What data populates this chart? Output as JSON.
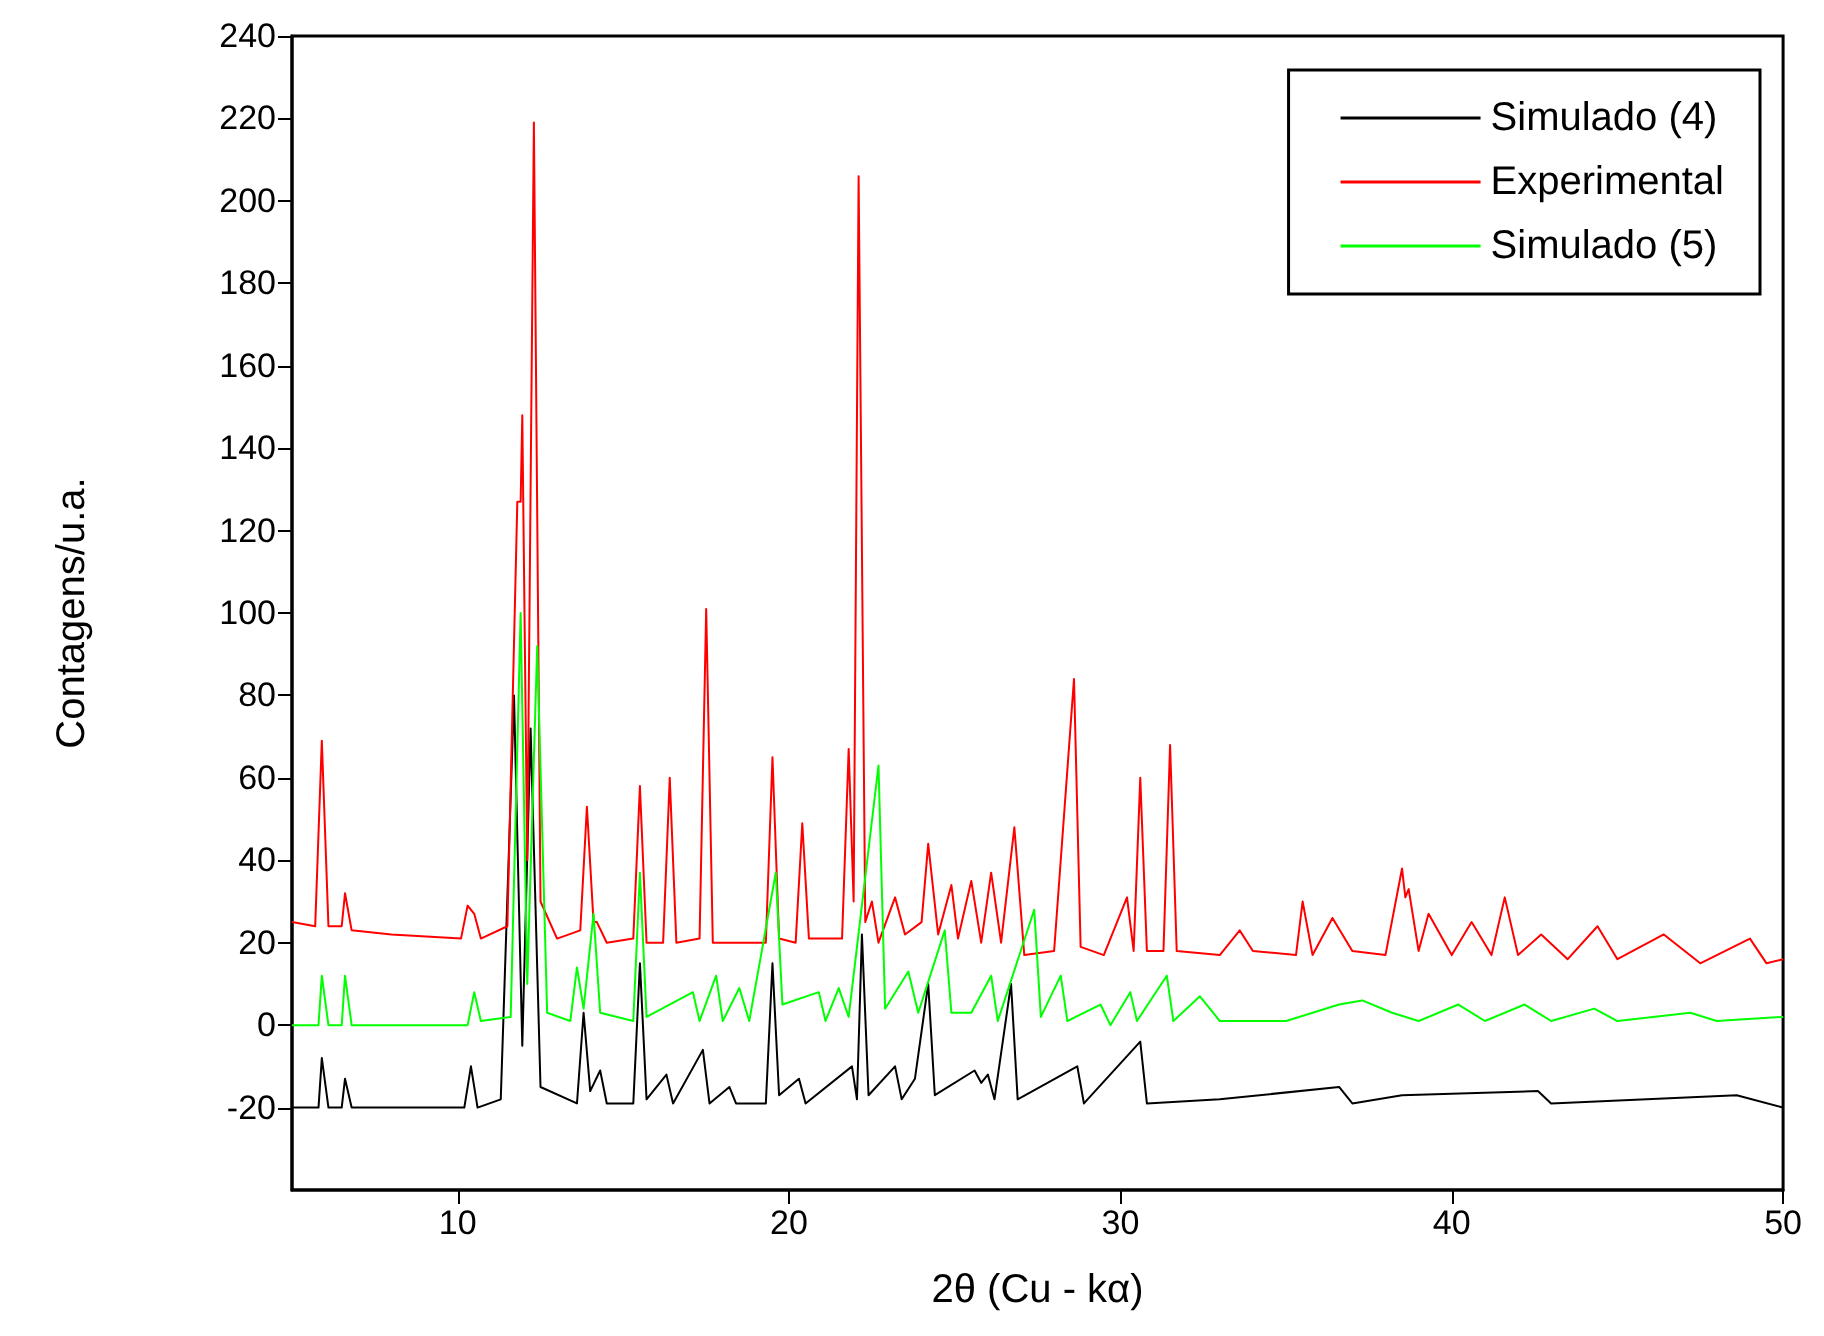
{
  "chart_data": {
    "type": "line",
    "xlabel": "2θ (Cu - kα)",
    "ylabel": "Contagens/u.a.",
    "xlim": [
      5,
      50
    ],
    "xticks": [
      10,
      20,
      30,
      40,
      50
    ],
    "ylim": [
      -40,
      240
    ],
    "yticks": [
      -20,
      0,
      20,
      40,
      60,
      80,
      100,
      120,
      140,
      160,
      180,
      200,
      220,
      240
    ],
    "grid": false,
    "legend": "top right",
    "series": [
      {
        "name": "Simulado (4)",
        "color": "#000000",
        "x": [
          5,
          5.8,
          5.9,
          6.1,
          6.5,
          6.6,
          6.8,
          10.2,
          10.4,
          10.6,
          11.3,
          11.7,
          11.95,
          12.2,
          12.5,
          13.6,
          13.8,
          14.0,
          14.3,
          14.5,
          15.3,
          15.5,
          15.7,
          16.3,
          16.5,
          17.4,
          17.6,
          18.2,
          18.4,
          19.3,
          19.5,
          19.7,
          20.3,
          20.5,
          21.9,
          22.05,
          22.2,
          22.4,
          23.2,
          23.4,
          23.8,
          24.2,
          24.4,
          25.6,
          25.8,
          26.0,
          26.2,
          26.7,
          26.9,
          28.7,
          28.9,
          30.6,
          30.8,
          33.0,
          36.6,
          37,
          38.5,
          42.6,
          43,
          48.6,
          50
        ],
        "values": [
          -20,
          -20,
          -8,
          -20,
          -20,
          -13,
          -20,
          -20,
          -10,
          -20,
          -18,
          80,
          -5,
          72,
          -15,
          -19,
          3,
          -16,
          -11,
          -19,
          -19,
          15,
          -18,
          -12,
          -19,
          -6,
          -19,
          -15,
          -19,
          -19,
          15,
          -17,
          -13,
          -19,
          -10,
          -18,
          22,
          -17,
          -10,
          -18,
          -13,
          10,
          -17,
          -11,
          -14,
          -12,
          -18,
          10,
          -18,
          -10,
          -19,
          -4,
          -19,
          -18,
          -15,
          -19,
          -17,
          -16,
          -19,
          -17,
          -20
        ]
      },
      {
        "name": "Experimental",
        "color": "#ff0000",
        "x": [
          5.0,
          5.7,
          5.9,
          6.1,
          6.5,
          6.6,
          6.8,
          8,
          10.1,
          10.3,
          10.5,
          10.7,
          11.5,
          11.8,
          11.9,
          11.95,
          12.1,
          12.3,
          12.5,
          13.0,
          13.7,
          13.9,
          14.1,
          14.2,
          14.5,
          15.3,
          15.5,
          15.7,
          16.2,
          16.4,
          16.6,
          17.3,
          17.5,
          17.7,
          19.3,
          19.5,
          19.7,
          20.2,
          20.4,
          20.6,
          21.6,
          21.8,
          21.95,
          22.1,
          22.3,
          22.5,
          22.7,
          23.2,
          23.5,
          24.0,
          24.2,
          24.5,
          24.9,
          25.1,
          25.5,
          25.8,
          26.1,
          26.4,
          26.8,
          27.1,
          28.0,
          28.6,
          28.8,
          29.5,
          30.2,
          30.4,
          30.6,
          30.8,
          31.3,
          31.5,
          31.7,
          33.0,
          33.6,
          34.0,
          35.3,
          35.5,
          35.8,
          36.4,
          37.0,
          38.0,
          38.5,
          38.6,
          38.7,
          39.0,
          39.3,
          40.0,
          40.6,
          41.2,
          41.6,
          42.0,
          42.7,
          43.5,
          44.4,
          45.0,
          46.4,
          47.5,
          49.0,
          49.5,
          50
        ],
        "values": [
          25,
          24,
          69,
          24,
          24,
          32,
          23,
          22,
          21,
          29,
          27,
          21,
          24,
          127,
          127,
          148,
          40,
          219,
          30,
          21,
          23,
          53,
          25,
          25,
          20,
          21,
          58,
          20,
          20,
          60,
          20,
          21,
          101,
          20,
          20,
          65,
          21,
          20,
          49,
          21,
          21,
          67,
          30,
          206,
          25,
          30,
          20,
          31,
          22,
          25,
          44,
          22,
          34,
          21,
          35,
          20,
          37,
          20,
          48,
          17,
          18,
          84,
          19,
          17,
          31,
          18,
          60,
          18,
          18,
          68,
          18,
          17,
          23,
          18,
          17,
          30,
          17,
          26,
          18,
          17,
          38,
          31,
          33,
          18,
          27,
          17,
          25,
          17,
          31,
          17,
          22,
          16,
          24,
          16,
          22,
          15,
          21,
          15,
          16
        ]
      },
      {
        "name": "Simulado (5)",
        "color": "#00ff00",
        "x": [
          5,
          5.8,
          5.9,
          6.1,
          6.5,
          6.6,
          6.8,
          10.3,
          10.5,
          10.7,
          11.6,
          11.9,
          12.1,
          12.4,
          12.7,
          13.4,
          13.6,
          13.8,
          14.1,
          14.3,
          15.3,
          15.5,
          15.7,
          17.1,
          17.3,
          17.8,
          18.0,
          18.5,
          18.8,
          19.6,
          19.8,
          20.9,
          21.1,
          21.5,
          21.8,
          22.7,
          22.9,
          23.6,
          23.9,
          24.7,
          24.9,
          25.5,
          26.1,
          26.3,
          27.4,
          27.6,
          28.2,
          28.4,
          29.4,
          29.7,
          30.3,
          30.5,
          31.4,
          31.6,
          32.4,
          33.0,
          35.0,
          36.6,
          37.3,
          38.2,
          39,
          40.2,
          41,
          42.2,
          43,
          44.3,
          45,
          47.2,
          48,
          50
        ],
        "values": [
          0,
          0,
          12,
          0,
          0,
          12,
          0,
          0,
          8,
          1,
          2,
          100,
          10,
          92,
          3,
          1,
          14,
          4,
          27,
          3,
          1,
          37,
          2,
          8,
          1,
          12,
          1,
          9,
          1,
          37,
          5,
          8,
          1,
          9,
          2,
          63,
          4,
          13,
          3,
          23,
          3,
          3,
          12,
          1,
          28,
          2,
          12,
          1,
          5,
          0,
          8,
          1,
          12,
          1,
          7,
          1,
          1,
          5,
          6,
          3,
          1,
          5,
          1,
          5,
          1,
          4,
          1,
          3,
          1,
          2
        ]
      }
    ]
  }
}
